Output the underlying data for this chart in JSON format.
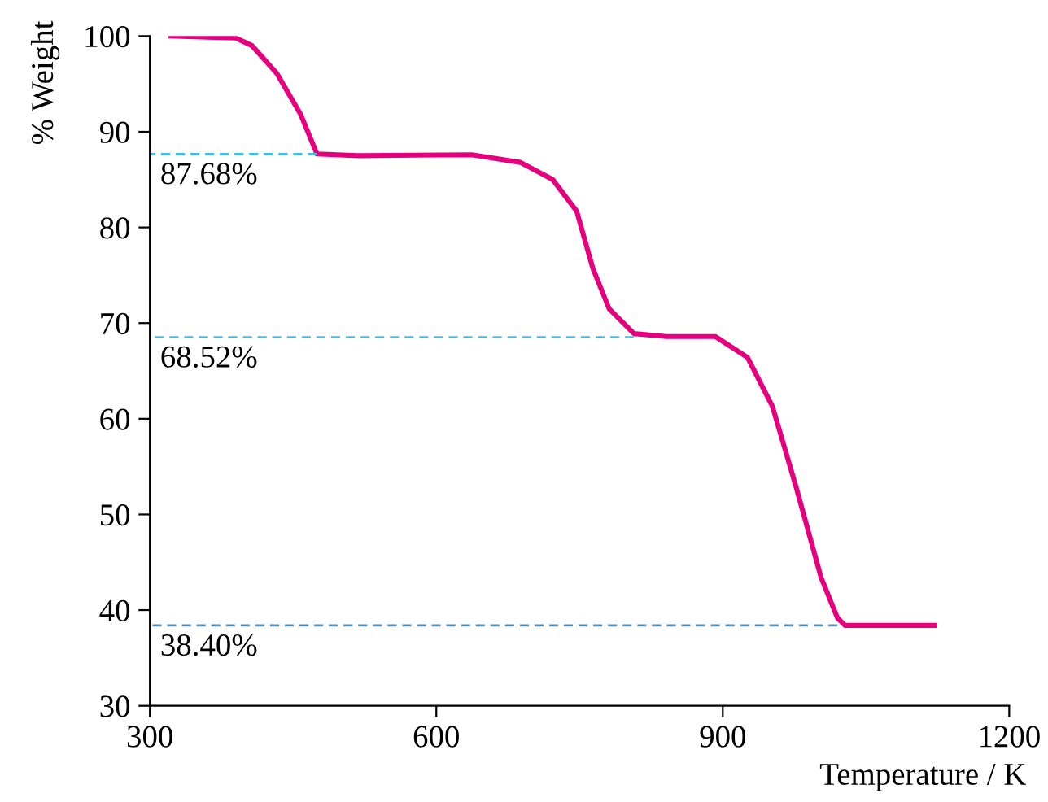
{
  "chart_data": {
    "type": "line",
    "xlabel": "Temperature / K",
    "ylabel": "% Weight",
    "xlim": [
      300,
      1200
    ],
    "xticks": [
      300,
      600,
      900,
      1200
    ],
    "ylim": [
      30,
      100
    ],
    "yticks": [
      30,
      40,
      50,
      60,
      70,
      80,
      90,
      100
    ],
    "grid": false,
    "legend": false,
    "series": [
      {
        "color": "#e6007e",
        "line_style": "solid",
        "x": [
          322,
          390,
          407,
          433,
          458,
          475,
          518,
          637,
          688,
          722,
          747,
          764,
          781,
          807,
          841,
          892,
          926,
          952,
          977,
          1003,
          1020,
          1028,
          1122
        ],
        "values": [
          100,
          99.8,
          99,
          96.1,
          91.8,
          87.68,
          87.5,
          87.6,
          86.8,
          85.0,
          81.7,
          75.7,
          71.5,
          68.9,
          68.6,
          68.6,
          66.4,
          61.3,
          52.8,
          43.4,
          39.2,
          38.4,
          38.4
        ]
      },
      {
        "color": "#3cc0e8",
        "line_style": "dashed",
        "x": [
          300,
          475
        ],
        "values": [
          87.68,
          87.68
        ]
      },
      {
        "color": "#3cc0e8",
        "line_style": "dashed",
        "x": [
          300,
          807
        ],
        "values": [
          68.52,
          68.52
        ]
      },
      {
        "color": "#4a8fc0",
        "line_style": "dashed",
        "x": [
          300,
          1020
        ],
        "values": [
          38.4,
          38.4
        ]
      }
    ],
    "annotations": [
      {
        "text": "87.68%",
        "y": 87.68
      },
      {
        "text": "68.52%",
        "y": 68.52
      },
      {
        "text": "38.40%",
        "y": 38.4
      }
    ]
  }
}
